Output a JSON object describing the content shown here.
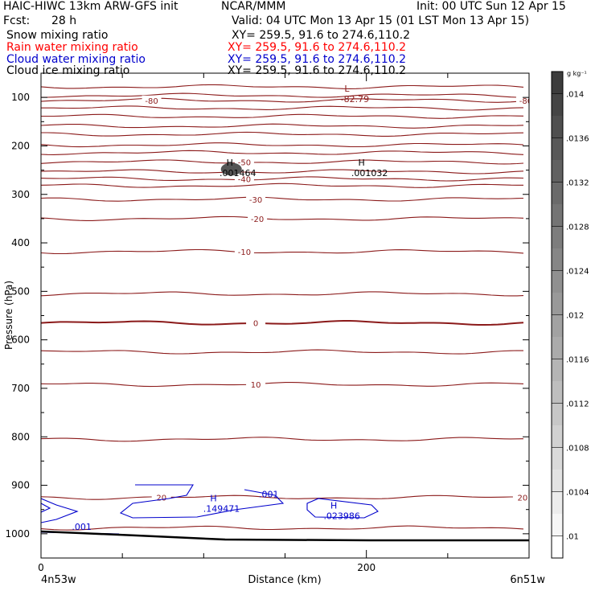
{
  "header": {
    "left_title": "HAIC-HIWC 13km ARW-GFS init",
    "center_title": "NCAR/MMM",
    "init_time": "Init: 00 UTC Sun 12 Apr 15",
    "fcst_label": "Fcst:",
    "fcst_value": "28 h",
    "valid_time": "Valid: 04 UTC Mon 13 Apr 15 (01 LST Mon 13 Apr 15)"
  },
  "fields": [
    {
      "name": "Snow mixing ratio",
      "xy": "XY= 259.5, 91.6 to 274.6,110.2",
      "color": "#000000"
    },
    {
      "name": "Rain water mixing ratio",
      "xy": "XY= 259.5, 91.6 to 274.6,110.2",
      "color": "#ff0000"
    },
    {
      "name": "Cloud water mixing ratio",
      "xy": "XY= 259.5, 91.6 to 274.6,110.2",
      "color": "#0000cc"
    },
    {
      "name": "Cloud ice mixing ratio",
      "xy": "XY= 259.5, 91.6 to 274.6,110.2",
      "color": "#000000"
    }
  ],
  "chart_data": {
    "type": "contour cross-section",
    "xlabel": "Distance (km)",
    "ylabel": "Pressure (hPa)",
    "xlim": [
      0,
      300
    ],
    "ylim": [
      1050,
      50
    ],
    "x_ticks": [
      {
        "value": 0,
        "label": "0"
      },
      {
        "value": 200,
        "label": "200"
      }
    ],
    "x_minor_ticks": [
      50,
      100,
      150,
      250,
      300
    ],
    "y_ticks": [
      {
        "value": 100,
        "label": "100"
      },
      {
        "value": 200,
        "label": "200"
      },
      {
        "value": 300,
        "label": "300"
      },
      {
        "value": 400,
        "label": "400"
      },
      {
        "value": 500,
        "label": "500"
      },
      {
        "value": 600,
        "label": "600"
      },
      {
        "value": 700,
        "label": "700"
      },
      {
        "value": 800,
        "label": "800"
      },
      {
        "value": 900,
        "label": "900"
      },
      {
        "value": 1000,
        "label": "1000"
      }
    ],
    "endpoints": {
      "left": "4n53w",
      "right": "6n51w"
    },
    "temperature_contours": [
      {
        "p": 78,
        "label": "",
        "x": [],
        "bold": false
      },
      {
        "p": 96,
        "label": "",
        "x": [],
        "bold": false
      },
      {
        "p": 106,
        "label": "-80",
        "x": [
          68,
          298
        ],
        "bold": false
      },
      {
        "p": 122,
        "label": "",
        "x": [],
        "bold": false
      },
      {
        "p": 139,
        "label": "",
        "x": [],
        "bold": false
      },
      {
        "p": 159,
        "label": "",
        "x": [],
        "bold": false
      },
      {
        "p": 176,
        "label": "",
        "x": [],
        "bold": false
      },
      {
        "p": 198,
        "label": "",
        "x": [],
        "bold": false
      },
      {
        "p": 214,
        "label": "",
        "x": [],
        "bold": false
      },
      {
        "p": 233,
        "label": "-50",
        "x": [
          125
        ],
        "bold": false
      },
      {
        "p": 253,
        "label": "",
        "x": [],
        "bold": false
      },
      {
        "p": 268,
        "label": "-40",
        "x": [
          125
        ],
        "bold": false
      },
      {
        "p": 282,
        "label": "",
        "x": [],
        "bold": false
      },
      {
        "p": 310,
        "label": "-30",
        "x": [
          132
        ],
        "bold": false
      },
      {
        "p": 350,
        "label": "-20",
        "x": [
          133
        ],
        "bold": false
      },
      {
        "p": 418,
        "label": "-10",
        "x": [
          125
        ],
        "bold": false
      },
      {
        "p": 505,
        "label": "",
        "x": [],
        "bold": false
      },
      {
        "p": 565,
        "label": "0",
        "x": [
          132
        ],
        "bold": true
      },
      {
        "p": 625,
        "label": "",
        "x": [],
        "bold": false
      },
      {
        "p": 692,
        "label": "10",
        "x": [
          132
        ],
        "bold": false
      },
      {
        "p": 805,
        "label": "",
        "x": [],
        "bold": false
      },
      {
        "p": 925,
        "label": "20",
        "x": [
          74,
          296
        ],
        "bold": false
      },
      {
        "p": 988,
        "label": "",
        "x": [],
        "bold": false
      }
    ],
    "extremes": [
      {
        "type": "L",
        "value": "-82.79",
        "x": 188,
        "p": 95
      },
      {
        "type": "H",
        "value": ".001464",
        "x": 116,
        "p": 247
      },
      {
        "type": "H",
        "value": ".001032",
        "x": 197,
        "p": 247
      },
      {
        "type": "H",
        "value": ".149471",
        "x": 106,
        "p": 940
      },
      {
        "type": "H",
        "value": ".023986",
        "x": 180,
        "p": 955
      }
    ],
    "cloud_water_contours": [
      {
        "label": ".001",
        "x": 140,
        "p": 918
      },
      {
        "label": ".001",
        "x": 25,
        "p": 985
      }
    ],
    "colorbar": {
      "unit": "g kg⁻¹",
      "ticks": [
        ".014",
        ".0136",
        ".0132",
        ".0128",
        ".0124",
        ".012",
        ".0116",
        ".0112",
        ".0108",
        ".0104",
        ".01"
      ],
      "min": 0.0098,
      "max": 0.0142
    }
  }
}
